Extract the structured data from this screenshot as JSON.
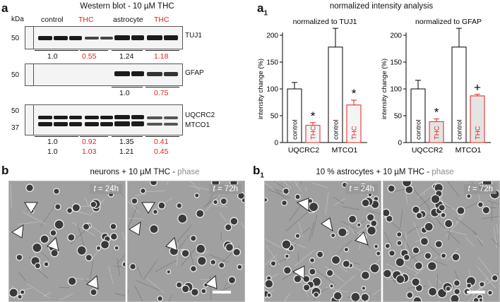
{
  "panel_a": {
    "letter": "a",
    "title": "Western blot - 10 µM THC",
    "kda": "kDa",
    "groups": [
      "control",
      "THC",
      "astrocyte",
      "THC"
    ],
    "blot1": {
      "marker": "50",
      "label": "TUJ1",
      "values": [
        "1.0",
        "0.55",
        "1.24",
        "1.18"
      ]
    },
    "blot2": {
      "marker": "50",
      "label": "GFAP",
      "values": [
        "1.0",
        "0.75"
      ]
    },
    "blot3": {
      "markers": [
        "50",
        "37"
      ],
      "labels": [
        "UQCRC2",
        "MTCO1"
      ],
      "values_row1": [
        "1.0",
        "0.92",
        "1.35",
        "0.41"
      ],
      "values_row2": [
        "1.0",
        "1.03",
        "1.21",
        "0.45"
      ]
    }
  },
  "panel_a1": {
    "letter": "a",
    "letter_sub": "1",
    "title": "normalized intensity analysis"
  },
  "chart_data": [
    {
      "type": "bar",
      "title": "normalized to TUJ1",
      "ylabel": "intensity  change (%)",
      "ylim": [
        0,
        200
      ],
      "yticks": [
        0,
        50,
        100,
        150,
        200
      ],
      "categories": [
        "UQCRC2",
        "MTCO1"
      ],
      "series": [
        {
          "name": "control",
          "values": [
            100,
            178
          ],
          "errors": [
            12,
            35
          ]
        },
        {
          "name": "THC",
          "values": [
            32,
            70
          ],
          "errors": [
            5,
            9
          ]
        }
      ],
      "annotations": [
        "*",
        "*"
      ],
      "colors": {
        "control": "#ffffff",
        "THC": "#f4f4f4",
        "control_edge": "#000000",
        "THC_edge": "#e0201b"
      }
    },
    {
      "type": "bar",
      "title": "normalized to GFAP",
      "ylabel": "intensity  change (%)",
      "ylim": [
        0,
        200
      ],
      "yticks": [
        0,
        50,
        100,
        150,
        200
      ],
      "categories": [
        "UQCCR2",
        "MTCO1"
      ],
      "series": [
        {
          "name": "control",
          "values": [
            100,
            178
          ],
          "errors": [
            16,
            35
          ]
        },
        {
          "name": "THC",
          "values": [
            39,
            87
          ],
          "errors": [
            5,
            3
          ]
        }
      ],
      "annotations": [
        "*",
        "+"
      ],
      "colors": {
        "control": "#ffffff",
        "THC": "#e4e4e4",
        "control_edge": "#000000",
        "THC_edge": "#e0201b"
      }
    }
  ],
  "panel_b": {
    "letter": "b",
    "title_main": "neurons + 10 µM THC - ",
    "title_phase": "phase",
    "time_var": "t",
    "times": [
      "= 24h",
      "= 72h"
    ]
  },
  "panel_b1": {
    "letter": "b",
    "letter_sub": "1",
    "title_main": "10 % astrocytes + 10 µM THC - ",
    "title_phase": "phase",
    "time_var": "t",
    "times": [
      "= 24h",
      "= 72h"
    ]
  }
}
